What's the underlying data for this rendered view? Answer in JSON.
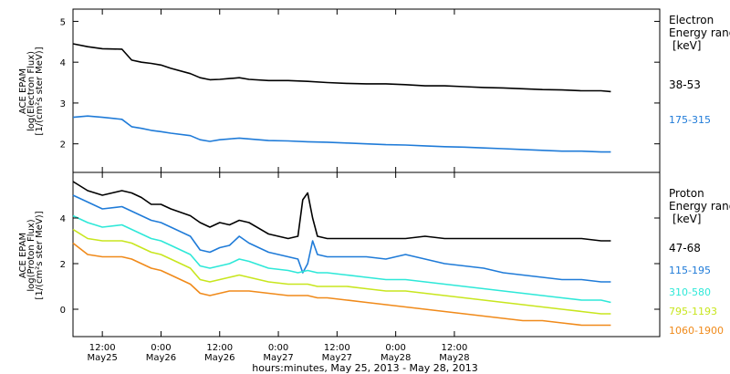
{
  "chart_data": [
    {
      "type": "line",
      "ylabel_lines": [
        "ACE EPAM",
        "log(Electron Flux)",
        "[1/(cm²s ster MeV)]"
      ],
      "ylim": [
        1.3,
        5.3
      ],
      "yticks": [
        2,
        3,
        4,
        5
      ],
      "legend_title": [
        "Electron",
        "Energy range",
        "[keV]"
      ],
      "series": [
        {
          "name": "38-53",
          "color": "#000000",
          "x": [
            0,
            3,
            6,
            10,
            12,
            14,
            16,
            18,
            20,
            24,
            26,
            28,
            30,
            32,
            34,
            36,
            40,
            44,
            48,
            52,
            56,
            60,
            64,
            68,
            72,
            76,
            80,
            84,
            88,
            92,
            96,
            100,
            104,
            108,
            110
          ],
          "y": [
            4.45,
            4.38,
            4.33,
            4.32,
            4.05,
            4.0,
            3.97,
            3.93,
            3.85,
            3.72,
            3.62,
            3.57,
            3.58,
            3.6,
            3.62,
            3.58,
            3.55,
            3.55,
            3.53,
            3.5,
            3.48,
            3.47,
            3.47,
            3.45,
            3.42,
            3.42,
            3.4,
            3.38,
            3.37,
            3.35,
            3.33,
            3.32,
            3.3,
            3.3,
            3.28
          ]
        },
        {
          "name": "175-315",
          "color": "#1f7bd8",
          "x": [
            0,
            3,
            6,
            10,
            12,
            14,
            16,
            18,
            20,
            24,
            26,
            28,
            30,
            32,
            34,
            36,
            40,
            44,
            48,
            52,
            56,
            60,
            64,
            68,
            72,
            76,
            80,
            84,
            88,
            92,
            96,
            100,
            104,
            108,
            110
          ],
          "y": [
            2.65,
            2.68,
            2.65,
            2.6,
            2.42,
            2.38,
            2.33,
            2.3,
            2.26,
            2.2,
            2.1,
            2.06,
            2.1,
            2.12,
            2.14,
            2.12,
            2.08,
            2.07,
            2.05,
            2.04,
            2.02,
            2.0,
            1.98,
            1.97,
            1.95,
            1.93,
            1.92,
            1.9,
            1.88,
            1.86,
            1.84,
            1.82,
            1.82,
            1.8,
            1.8
          ]
        }
      ]
    },
    {
      "type": "line",
      "ylabel_lines": [
        "ACE EPAM",
        "log(Proton Flux)",
        "[1/(cm²s ster MeV)]"
      ],
      "ylim": [
        -1.2,
        6.0
      ],
      "yticks": [
        0,
        2,
        4
      ],
      "legend_title": [
        "Proton",
        "Energy range",
        "[keV]"
      ],
      "series": [
        {
          "name": "47-68",
          "color": "#000000",
          "x": [
            0,
            3,
            6,
            10,
            12,
            14,
            16,
            18,
            20,
            24,
            26,
            28,
            30,
            32,
            34,
            36,
            40,
            44,
            46,
            47,
            48,
            49,
            50,
            52,
            56,
            60,
            64,
            68,
            72,
            76,
            80,
            84,
            88,
            92,
            96,
            100,
            104,
            108,
            110
          ],
          "y": [
            5.6,
            5.2,
            5.0,
            5.2,
            5.1,
            4.9,
            4.6,
            4.6,
            4.4,
            4.1,
            3.8,
            3.6,
            3.8,
            3.7,
            3.9,
            3.8,
            3.3,
            3.1,
            3.2,
            4.8,
            5.1,
            4.0,
            3.2,
            3.1,
            3.1,
            3.1,
            3.1,
            3.1,
            3.2,
            3.1,
            3.1,
            3.1,
            3.1,
            3.1,
            3.1,
            3.1,
            3.1,
            3.0,
            3.0
          ]
        },
        {
          "name": "115-195",
          "color": "#1f7bd8",
          "x": [
            0,
            3,
            6,
            10,
            12,
            14,
            16,
            18,
            20,
            24,
            26,
            28,
            30,
            32,
            34,
            36,
            40,
            44,
            46,
            47,
            48,
            49,
            50,
            52,
            56,
            60,
            64,
            68,
            72,
            76,
            80,
            84,
            88,
            92,
            96,
            100,
            104,
            108,
            110
          ],
          "y": [
            5.0,
            4.7,
            4.4,
            4.5,
            4.3,
            4.1,
            3.9,
            3.8,
            3.6,
            3.2,
            2.6,
            2.5,
            2.7,
            2.8,
            3.2,
            2.9,
            2.5,
            2.3,
            2.2,
            1.6,
            2.0,
            3.0,
            2.4,
            2.3,
            2.3,
            2.3,
            2.2,
            2.4,
            2.2,
            2.0,
            1.9,
            1.8,
            1.6,
            1.5,
            1.4,
            1.3,
            1.3,
            1.2,
            1.2
          ]
        },
        {
          "name": "310-580",
          "color": "#2ee8d8",
          "x": [
            0,
            3,
            6,
            10,
            12,
            14,
            16,
            18,
            20,
            24,
            26,
            28,
            30,
            32,
            34,
            36,
            40,
            44,
            46,
            48,
            50,
            52,
            56,
            60,
            64,
            68,
            72,
            76,
            80,
            84,
            88,
            92,
            96,
            100,
            104,
            108,
            110
          ],
          "y": [
            4.1,
            3.8,
            3.6,
            3.7,
            3.5,
            3.3,
            3.1,
            3.0,
            2.8,
            2.4,
            1.9,
            1.8,
            1.9,
            2.0,
            2.2,
            2.1,
            1.8,
            1.7,
            1.6,
            1.7,
            1.6,
            1.6,
            1.5,
            1.4,
            1.3,
            1.3,
            1.2,
            1.1,
            1.0,
            0.9,
            0.8,
            0.7,
            0.6,
            0.5,
            0.4,
            0.4,
            0.3
          ]
        },
        {
          "name": "795-1193",
          "color": "#c8e61e",
          "x": [
            0,
            3,
            6,
            10,
            12,
            14,
            16,
            18,
            20,
            24,
            26,
            28,
            30,
            32,
            34,
            36,
            40,
            44,
            46,
            48,
            50,
            52,
            56,
            60,
            64,
            68,
            72,
            76,
            80,
            84,
            88,
            92,
            96,
            100,
            104,
            108,
            110
          ],
          "y": [
            3.5,
            3.1,
            3.0,
            3.0,
            2.9,
            2.7,
            2.5,
            2.4,
            2.2,
            1.8,
            1.3,
            1.2,
            1.3,
            1.4,
            1.5,
            1.4,
            1.2,
            1.1,
            1.1,
            1.1,
            1.0,
            1.0,
            1.0,
            0.9,
            0.8,
            0.8,
            0.7,
            0.6,
            0.5,
            0.4,
            0.3,
            0.2,
            0.1,
            0.0,
            -0.1,
            -0.2,
            -0.2
          ]
        },
        {
          "name": "1060-1900",
          "color": "#f08a1a",
          "x": [
            0,
            3,
            6,
            10,
            12,
            14,
            16,
            18,
            20,
            24,
            26,
            28,
            30,
            32,
            34,
            36,
            40,
            44,
            46,
            48,
            50,
            52,
            56,
            60,
            64,
            68,
            72,
            76,
            80,
            84,
            88,
            92,
            96,
            100,
            104,
            108,
            110
          ],
          "y": [
            2.9,
            2.4,
            2.3,
            2.3,
            2.2,
            2.0,
            1.8,
            1.7,
            1.5,
            1.1,
            0.7,
            0.6,
            0.7,
            0.8,
            0.8,
            0.8,
            0.7,
            0.6,
            0.6,
            0.6,
            0.5,
            0.5,
            0.4,
            0.3,
            0.2,
            0.1,
            0.0,
            -0.1,
            -0.2,
            -0.3,
            -0.4,
            -0.5,
            -0.5,
            -0.6,
            -0.7,
            -0.7,
            -0.7
          ]
        }
      ]
    }
  ],
  "x_axis": {
    "xlim": [
      0,
      120
    ],
    "xlabel": "hours:minutes, May 25, 2013 - May 28, 2013",
    "ticks": [
      {
        "x": 6,
        "line1": "12:00",
        "line2": "May25"
      },
      {
        "x": 18,
        "line1": "0:00",
        "line2": "May26"
      },
      {
        "x": 30,
        "line1": "12:00",
        "line2": "May26"
      },
      {
        "x": 42,
        "line1": "0:00",
        "line2": "May27"
      },
      {
        "x": 54,
        "line1": "12:00",
        "line2": "May27"
      },
      {
        "x": 66,
        "line1": "0:00",
        "line2": "May28"
      },
      {
        "x": 78,
        "line1": "12:00",
        "line2": "May28"
      }
    ]
  }
}
